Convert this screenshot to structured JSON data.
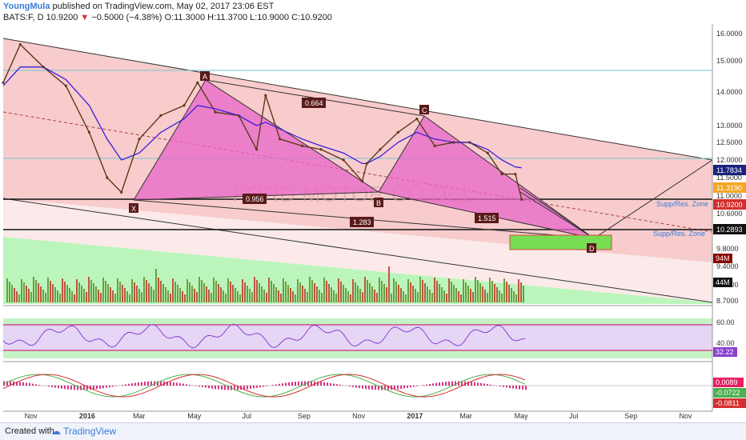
{
  "header": {
    "author": "YoungMula",
    "published": "published on TradingView.com, May 02, 2017 23:06 EST",
    "symbol": "BATS:F, D",
    "last": "10.9200",
    "change": "−0.5000 (−4.38%)",
    "ohlc": "O:11.3000  H:11.3700  L:10.9000  C:10.9200"
  },
  "footer": {
    "created_with": "Created with",
    "brand": "TradingView"
  },
  "watermark": "FORD MOTOR CO DEL",
  "colors": {
    "channel_fill": "#f7c3c3",
    "pattern_fill": "#e865c8",
    "volume_up": "#5e8f2a",
    "volume_down": "#c0392b",
    "volume_bg": "#90ee90",
    "rsi_line": "#8a3fd1",
    "ma_purple": "#3b1fd8",
    "ma_orange": "#f5a623"
  },
  "chart_data": [
    {
      "type": "line",
      "name": "price",
      "x_ticks": [
        "Nov",
        "2016",
        "Mar",
        "May",
        "Jul",
        "Sep",
        "Nov",
        "2017",
        "Mar",
        "May",
        "Jul",
        "Sep",
        "Nov"
      ],
      "y_ticks": [
        16.0,
        15.0,
        14.0,
        13.0,
        12.5,
        12.0,
        11.5,
        11.0,
        10.6,
        10.2,
        9.8,
        9.4,
        9.0,
        8.7
      ],
      "ylim": [
        8.6,
        16.2
      ],
      "xlim": [
        "2015-10-01",
        "2017-12-01"
      ],
      "series": [
        {
          "dates": [
            "2015-10-01",
            "2015-10-20",
            "2015-11-15",
            "2015-12-10",
            "2016-01-05",
            "2016-01-25",
            "2016-02-10",
            "2016-03-01",
            "2016-03-25",
            "2016-04-20",
            "2016-05-05",
            "2016-05-25",
            "2016-06-20",
            "2016-07-10",
            "2016-07-20",
            "2016-08-05",
            "2016-08-30",
            "2016-09-20",
            "2016-10-15",
            "2016-11-05",
            "2016-11-10",
            "2016-11-25",
            "2016-12-15",
            "2017-01-05",
            "2017-01-25",
            "2017-02-15",
            "2017-03-05",
            "2017-03-25",
            "2017-04-10",
            "2017-04-25",
            "2017-05-02"
          ],
          "values": [
            14.3,
            15.6,
            14.8,
            14.2,
            12.8,
            11.5,
            11.1,
            12.6,
            13.3,
            13.6,
            14.3,
            13.4,
            13.3,
            12.3,
            13.9,
            12.6,
            12.4,
            12.3,
            12.0,
            11.4,
            11.9,
            12.3,
            12.8,
            13.2,
            12.4,
            12.5,
            12.5,
            12.2,
            11.6,
            11.6,
            10.92
          ]
        },
        {
          "name": "MA1",
          "values": [
            14.2,
            14.8,
            14.8,
            14.4,
            13.6,
            12.6,
            12.0,
            12.2,
            12.8,
            13.2,
            13.6,
            13.5,
            13.3,
            13.0,
            13.1,
            12.9,
            12.6,
            12.4,
            12.2,
            11.9,
            11.9,
            12.1,
            12.5,
            12.8,
            12.6,
            12.5,
            12.5,
            12.3,
            12.0,
            11.8,
            11.78
          ]
        }
      ],
      "pattern_points": {
        "X": {
          "date": "2016-02-10",
          "value": 11.1
        },
        "A": {
          "date": "2016-05-05",
          "value": 14.3
        },
        "B": {
          "date": "2016-11-05",
          "value": 11.1
        },
        "C": {
          "date": "2017-01-05",
          "value": 13.3
        },
        "D": {
          "date": "2017-07-10",
          "value": 9.85
        }
      },
      "ratio_labels": [
        "0.664",
        "0.956",
        "1.283",
        "1.515"
      ],
      "zone_labels": [
        "Supp/Res. Zone",
        "Supp/Res. Zone"
      ],
      "right_labels": [
        "11.7834",
        "11.3190",
        "10.9200",
        "10.2893"
      ],
      "volume_labels": [
        "94M",
        "44M"
      ]
    },
    {
      "type": "line",
      "name": "RSI",
      "y_ticks": [
        60.0,
        40.0
      ],
      "ylim": [
        20,
        90
      ],
      "last_label": "32.22"
    },
    {
      "type": "bar",
      "name": "MACD",
      "labels": [
        "0.0089",
        "-0.0722",
        "-0.0811"
      ]
    }
  ]
}
